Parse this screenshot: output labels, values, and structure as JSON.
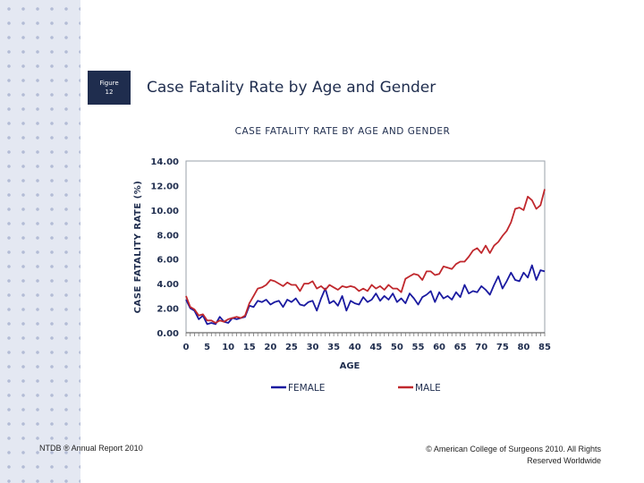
{
  "figure_badge": {
    "line1": "Figure",
    "line2": "12"
  },
  "page_title": "Case Fatality Rate by Age and Gender",
  "footer": {
    "left": "NTDB ® Annual Report 2010",
    "right": "© American College of Surgeons 2010. All Rights Reserved Worldwide"
  },
  "colors": {
    "female": "#1a1aa0",
    "male": "#c0282d",
    "title": "#1f2d4e"
  },
  "chart_data": {
    "type": "line",
    "title": "CASE FATALITY RATE BY AGE AND GENDER",
    "xlabel": "AGE",
    "ylabel": "CASE FATALITY RATE (%)",
    "xlim": [
      0,
      85
    ],
    "ylim": [
      0,
      14
    ],
    "x_ticks": [
      0,
      5,
      10,
      15,
      20,
      25,
      30,
      35,
      40,
      45,
      50,
      55,
      60,
      65,
      70,
      75,
      80,
      85
    ],
    "y_ticks": [
      "0.00",
      "2.00",
      "4.00",
      "6.00",
      "8.00",
      "10.00",
      "12.00",
      "14.00"
    ],
    "grid": false,
    "legend": "bottom",
    "x": [
      0,
      1,
      2,
      3,
      4,
      5,
      6,
      7,
      8,
      9,
      10,
      11,
      12,
      13,
      14,
      15,
      16,
      17,
      18,
      19,
      20,
      21,
      22,
      23,
      24,
      25,
      26,
      27,
      28,
      29,
      30,
      31,
      32,
      33,
      34,
      35,
      36,
      37,
      38,
      39,
      40,
      41,
      42,
      43,
      44,
      45,
      46,
      47,
      48,
      49,
      50,
      51,
      52,
      53,
      54,
      55,
      56,
      57,
      58,
      59,
      60,
      61,
      62,
      63,
      64,
      65,
      66,
      67,
      68,
      69,
      70,
      71,
      72,
      73,
      74,
      75,
      76,
      77,
      78,
      79,
      80,
      81,
      82,
      83,
      84,
      85
    ],
    "series": [
      {
        "name": "FEMALE",
        "values": [
          2.7,
          2.0,
          1.8,
          1.1,
          1.4,
          0.7,
          0.8,
          0.7,
          1.3,
          0.9,
          0.8,
          1.2,
          1.1,
          1.2,
          1.3,
          2.2,
          2.1,
          2.6,
          2.5,
          2.7,
          2.3,
          2.5,
          2.6,
          2.1,
          2.7,
          2.5,
          2.8,
          2.3,
          2.2,
          2.5,
          2.6,
          1.8,
          2.8,
          3.6,
          2.4,
          2.6,
          2.2,
          3.0,
          1.8,
          2.6,
          2.4,
          2.3,
          2.9,
          2.5,
          2.7,
          3.2,
          2.6,
          3.0,
          2.7,
          3.2,
          2.5,
          2.8,
          2.4,
          3.2,
          2.8,
          2.3,
          2.9,
          3.1,
          3.4,
          2.5,
          3.3,
          2.8,
          3.0,
          2.7,
          3.3,
          2.9,
          3.9,
          3.2,
          3.4,
          3.3,
          3.8,
          3.5,
          3.1,
          3.9,
          4.6,
          3.6,
          4.2,
          4.9,
          4.3,
          4.2,
          4.9,
          4.5,
          5.5,
          4.3,
          5.1,
          5.0
        ]
      },
      {
        "name": "MALE",
        "values": [
          3.0,
          2.1,
          1.9,
          1.4,
          1.5,
          1.0,
          1.0,
          0.8,
          1.0,
          0.9,
          1.1,
          1.2,
          1.3,
          1.2,
          1.4,
          2.4,
          3.0,
          3.6,
          3.7,
          3.9,
          4.3,
          4.2,
          4.0,
          3.8,
          4.1,
          3.9,
          3.9,
          3.4,
          4.0,
          4.0,
          4.2,
          3.6,
          3.8,
          3.5,
          3.9,
          3.7,
          3.5,
          3.8,
          3.7,
          3.8,
          3.7,
          3.4,
          3.6,
          3.4,
          3.9,
          3.6,
          3.8,
          3.5,
          3.9,
          3.6,
          3.6,
          3.3,
          4.4,
          4.6,
          4.8,
          4.7,
          4.3,
          5.0,
          5.0,
          4.7,
          4.8,
          5.4,
          5.3,
          5.2,
          5.6,
          5.8,
          5.8,
          6.2,
          6.7,
          6.9,
          6.5,
          7.1,
          6.5,
          7.1,
          7.4,
          7.9,
          8.3,
          9.0,
          10.1,
          10.2,
          10.0,
          11.1,
          10.8,
          10.1,
          10.4,
          11.7
        ]
      }
    ]
  }
}
